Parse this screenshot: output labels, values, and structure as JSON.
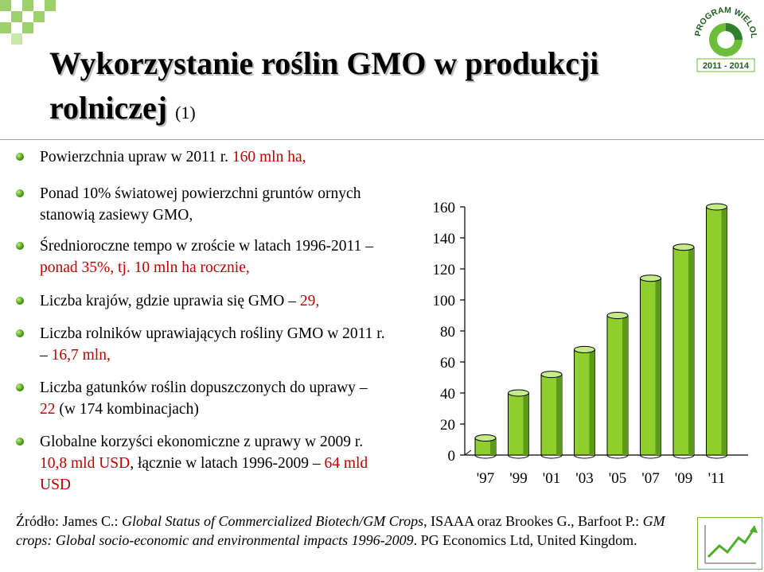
{
  "title": {
    "main": "Wykorzystanie roślin GMO w produkcji rolniczej",
    "suffix": "(1)"
  },
  "logo": {
    "text": "PROGRAM WIELOLETNI",
    "years": "2011 - 2014"
  },
  "bullets": [
    {
      "text": "Powierzchnia upraw w 2011 r.",
      "highlight": "160 mln ha,"
    },
    {
      "text": "Ponad 10% światowej powierzchni gruntów ornych stanowią zasiewy GMO,"
    },
    {
      "text": "Średnioroczne tempo w zroście w latach 1996-2011",
      "dash": "–",
      "highlight": "ponad 35%, tj. 10 mln ha rocznie,"
    },
    {
      "text": "Liczba krajów, gdzie uprawia się GMO",
      "dash": "–",
      "highlight": "29,"
    },
    {
      "text": "Liczba rolników uprawiających rośliny GMO w 2011 r.",
      "dash": "–",
      "highlight": "16,7 mln,"
    },
    {
      "text_a": "Liczba gatunków roślin dopuszczonych do uprawy",
      "dash": "–",
      "highlight": "22",
      "text_b": "(w 174 kombinacjach)"
    },
    {
      "text_a": "Globalne korzyści ekonomiczne z uprawy w 2009 r.",
      "highlight_a": "10,8 mld USD",
      "text_b": ", łącznie w latach 1996-2009",
      "dash": "–",
      "highlight_b": "64 mld USD"
    }
  ],
  "source": {
    "prefix": "Źródło: James C.:",
    "italic_a": "Global Status of Commercialized Biotech/GM Crops",
    "mid": ", ISAAA oraz Brookes G., Barfoot P.:",
    "italic_b": "GM crops: Global socio-economic and environmental impacts 1996-2009",
    "suffix": ". PG Economics Ltd, United Kingdom."
  },
  "chart_data": {
    "type": "bar",
    "categories": [
      "'97",
      "'99",
      "'01",
      "'03",
      "'05",
      "'07",
      "'09",
      "'11"
    ],
    "values": [
      11,
      40,
      52,
      68,
      90,
      114,
      134,
      160
    ],
    "ylim": [
      0,
      160
    ],
    "yticks": [
      0,
      20,
      40,
      60,
      80,
      100,
      120,
      140,
      160
    ],
    "bar_color": "#8fcf2c",
    "title": "",
    "xlabel": "",
    "ylabel": ""
  },
  "colors": {
    "accent": "#c00000",
    "bar": "#8fcf2c",
    "logo_green": "#6bbd3a"
  },
  "icons": {
    "bullet": "green-sphere-bullet-icon",
    "growth": "growth-arrow-icon"
  }
}
